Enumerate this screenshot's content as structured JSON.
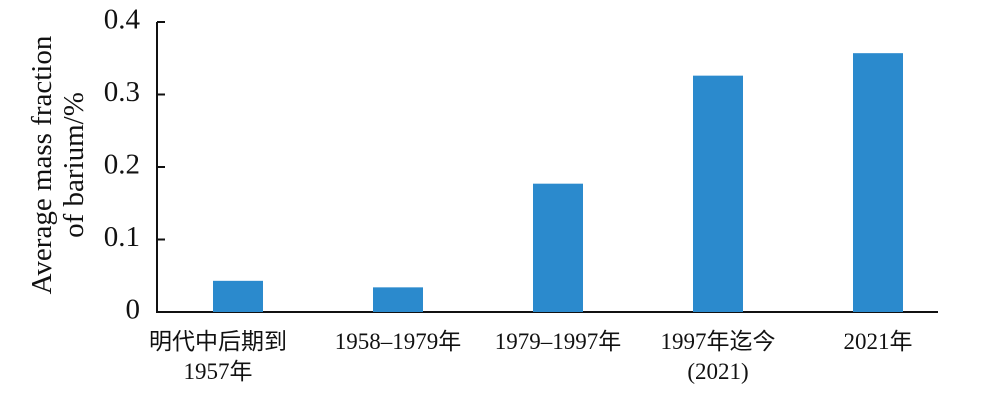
{
  "chart_data": {
    "type": "bar",
    "ylabel": "Average mass fraction\nof barium/%",
    "categories": [
      "明代中后期到\n1957年",
      "1958–1979年",
      "1979–1997年",
      "1997年迄今\n(2021)",
      "2021年"
    ],
    "values": [
      0.043,
      0.034,
      0.177,
      0.326,
      0.357
    ],
    "color": "#2b8acd",
    "ylim": [
      0,
      0.4
    ],
    "yticks": [
      0,
      0.1,
      0.2,
      0.3,
      0.4
    ],
    "grid": false
  }
}
